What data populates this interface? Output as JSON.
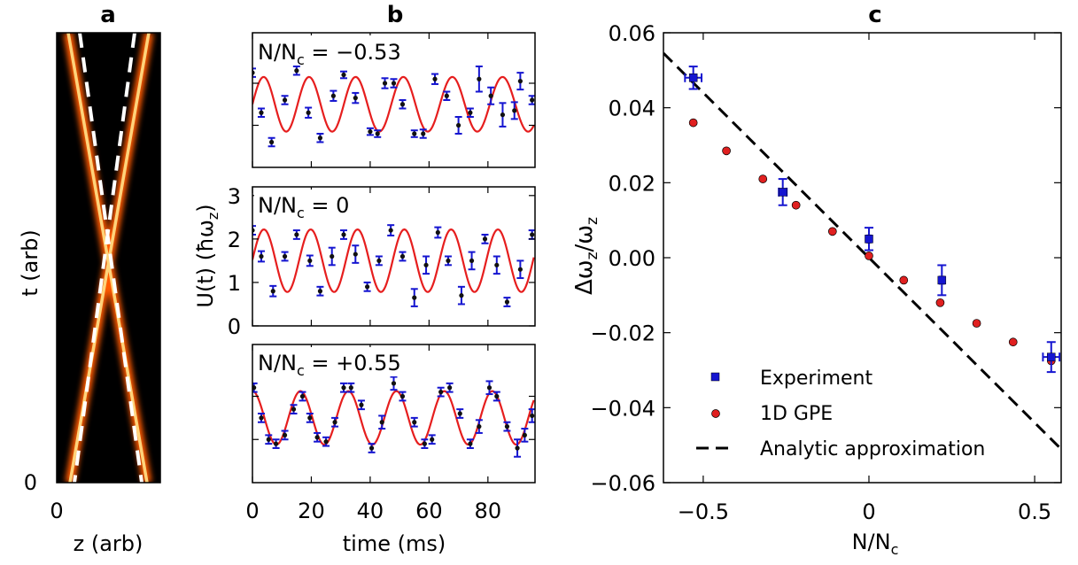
{
  "panels": {
    "a": {
      "letter": "a",
      "xlabel": "z (arb)",
      "ylabel": "t (arb)",
      "xtick": "0",
      "ytick": "0"
    },
    "b": {
      "letter": "b",
      "xlabel": "time (ms)",
      "ylabel": "U(t) (ħω",
      "ylabel_sub": "z",
      "ylabel_end": ")",
      "xticks": [
        0,
        20,
        40,
        60,
        80
      ],
      "yticks": [
        0,
        1,
        2,
        3
      ],
      "annotations": [
        {
          "pre": "N/N",
          "sub": "c",
          "post": " = −0.53"
        },
        {
          "pre": "N/N",
          "sub": "c",
          "post": " = 0"
        },
        {
          "pre": "N/N",
          "sub": "c",
          "post": " = +0.55"
        }
      ]
    },
    "c": {
      "letter": "c",
      "xlabel": "N/N",
      "xlabel_sub": "c",
      "ylabel": "Δω",
      "ylabel_sub1": "z",
      "ylabel_mid": "/ω",
      "ylabel_sub2": "z"
    }
  },
  "chart_data": [
    {
      "type": "heatmap",
      "panel": "a",
      "title": "a",
      "xlabel": "z (arb)",
      "ylabel": "t (arb)",
      "colormap": "black-red-yellow",
      "description_values": {
        "x_start": 0,
        "t_start": 0
      }
    },
    {
      "type": "line",
      "panel": "b",
      "title": "b",
      "xlabel": "time (ms)",
      "ylabel": "U(t) (ħωz)",
      "xlim": [
        0,
        96
      ],
      "ylim": [
        0,
        3.2
      ],
      "series": [
        {
          "annotation": "N/Nc = −0.53",
          "fit": {
            "mean": 1.5,
            "amp": 0.65,
            "period_ms": 15.2,
            "phase_ms": 3.8,
            "chirp": 0.008
          },
          "points": [
            {
              "x": 0,
              "y": 2.25,
              "err": 0.1
            },
            {
              "x": 3,
              "y": 1.3,
              "err": 0.1
            },
            {
              "x": 6.5,
              "y": 0.6,
              "err": 0.1
            },
            {
              "x": 11,
              "y": 1.6,
              "err": 0.1
            },
            {
              "x": 15,
              "y": 2.3,
              "err": 0.1
            },
            {
              "x": 19,
              "y": 1.3,
              "err": 0.12
            },
            {
              "x": 23,
              "y": 0.7,
              "err": 0.1
            },
            {
              "x": 27.5,
              "y": 1.7,
              "err": 0.12
            },
            {
              "x": 31,
              "y": 2.2,
              "err": 0.08
            },
            {
              "x": 35,
              "y": 1.65,
              "err": 0.12
            },
            {
              "x": 40,
              "y": 0.85,
              "err": 0.08
            },
            {
              "x": 42.5,
              "y": 0.8,
              "err": 0.08
            },
            {
              "x": 45,
              "y": 2.0,
              "err": 0.12
            },
            {
              "x": 48,
              "y": 2.0,
              "err": 0.1
            },
            {
              "x": 51,
              "y": 1.5,
              "err": 0.1
            },
            {
              "x": 55,
              "y": 0.8,
              "err": 0.08
            },
            {
              "x": 58,
              "y": 0.8,
              "err": 0.1
            },
            {
              "x": 62,
              "y": 2.1,
              "err": 0.12
            },
            {
              "x": 66,
              "y": 1.7,
              "err": 0.1
            },
            {
              "x": 70,
              "y": 1.0,
              "err": 0.2
            },
            {
              "x": 74,
              "y": 1.3,
              "err": 0.1
            },
            {
              "x": 77,
              "y": 2.1,
              "err": 0.3
            },
            {
              "x": 81,
              "y": 1.7,
              "err": 0.2
            },
            {
              "x": 85,
              "y": 1.25,
              "err": 0.28
            },
            {
              "x": 89,
              "y": 1.35,
              "err": 0.2
            },
            {
              "x": 91,
              "y": 2.05,
              "err": 0.2
            },
            {
              "x": 95,
              "y": 1.6,
              "err": 0.1
            }
          ]
        },
        {
          "annotation": "N/Nc = 0",
          "fit": {
            "mean": 1.5,
            "amp": 0.72,
            "period_ms": 15.9,
            "phase_ms": 3.9,
            "chirp": 0
          },
          "points": [
            {
              "x": 0,
              "y": 2.2,
              "err": 0.1
            },
            {
              "x": 3,
              "y": 1.6,
              "err": 0.12
            },
            {
              "x": 7,
              "y": 0.8,
              "err": 0.12
            },
            {
              "x": 11,
              "y": 1.6,
              "err": 0.1
            },
            {
              "x": 15,
              "y": 2.1,
              "err": 0.1
            },
            {
              "x": 19.5,
              "y": 1.5,
              "err": 0.12
            },
            {
              "x": 23,
              "y": 0.8,
              "err": 0.1
            },
            {
              "x": 27,
              "y": 1.6,
              "err": 0.2
            },
            {
              "x": 31,
              "y": 2.1,
              "err": 0.1
            },
            {
              "x": 35,
              "y": 1.65,
              "err": 0.2
            },
            {
              "x": 39,
              "y": 0.9,
              "err": 0.1
            },
            {
              "x": 43,
              "y": 1.5,
              "err": 0.1
            },
            {
              "x": 47,
              "y": 2.2,
              "err": 0.12
            },
            {
              "x": 51,
              "y": 1.6,
              "err": 0.1
            },
            {
              "x": 55,
              "y": 0.65,
              "err": 0.2
            },
            {
              "x": 59,
              "y": 1.4,
              "err": 0.2
            },
            {
              "x": 63,
              "y": 2.15,
              "err": 0.12
            },
            {
              "x": 66.5,
              "y": 1.5,
              "err": 0.1
            },
            {
              "x": 71,
              "y": 0.7,
              "err": 0.2
            },
            {
              "x": 74.5,
              "y": 1.5,
              "err": 0.2
            },
            {
              "x": 79,
              "y": 2.0,
              "err": 0.1
            },
            {
              "x": 83,
              "y": 1.4,
              "err": 0.2
            },
            {
              "x": 86.5,
              "y": 0.55,
              "err": 0.1
            },
            {
              "x": 91,
              "y": 1.3,
              "err": 0.2
            },
            {
              "x": 95,
              "y": 2.1,
              "err": 0.1
            }
          ]
        },
        {
          "annotation": "N/Nc = +0.55",
          "fit": {
            "mean": 1.5,
            "amp": 0.62,
            "period_ms": 16.3,
            "phase_ms": 0.0,
            "chirp": 0.0
          },
          "points": [
            {
              "x": 0.5,
              "y": 2.2,
              "err": 0.1
            },
            {
              "x": 3,
              "y": 1.5,
              "err": 0.1
            },
            {
              "x": 5.5,
              "y": 1.0,
              "err": 0.1
            },
            {
              "x": 8,
              "y": 0.9,
              "err": 0.1
            },
            {
              "x": 11,
              "y": 1.1,
              "err": 0.1
            },
            {
              "x": 14,
              "y": 1.7,
              "err": 0.1
            },
            {
              "x": 17,
              "y": 2.0,
              "err": 0.1
            },
            {
              "x": 19.5,
              "y": 1.5,
              "err": 0.1
            },
            {
              "x": 22,
              "y": 1.05,
              "err": 0.1
            },
            {
              "x": 25,
              "y": 0.95,
              "err": 0.1
            },
            {
              "x": 28,
              "y": 1.4,
              "err": 0.1
            },
            {
              "x": 31,
              "y": 2.2,
              "err": 0.1
            },
            {
              "x": 33.5,
              "y": 2.2,
              "err": 0.1
            },
            {
              "x": 37,
              "y": 1.8,
              "err": 0.1
            },
            {
              "x": 40.5,
              "y": 0.8,
              "err": 0.1
            },
            {
              "x": 44,
              "y": 1.4,
              "err": 0.15
            },
            {
              "x": 48,
              "y": 2.3,
              "err": 0.15
            },
            {
              "x": 51,
              "y": 2.0,
              "err": 0.1
            },
            {
              "x": 55,
              "y": 1.4,
              "err": 0.1
            },
            {
              "x": 58.5,
              "y": 0.9,
              "err": 0.1
            },
            {
              "x": 61,
              "y": 1.0,
              "err": 0.1
            },
            {
              "x": 64,
              "y": 2.1,
              "err": 0.1
            },
            {
              "x": 67,
              "y": 2.2,
              "err": 0.1
            },
            {
              "x": 70.5,
              "y": 1.6,
              "err": 0.1
            },
            {
              "x": 74,
              "y": 0.9,
              "err": 0.1
            },
            {
              "x": 77,
              "y": 1.3,
              "err": 0.15
            },
            {
              "x": 80.5,
              "y": 2.2,
              "err": 0.15
            },
            {
              "x": 83,
              "y": 2.0,
              "err": 0.1
            },
            {
              "x": 86.5,
              "y": 1.3,
              "err": 0.1
            },
            {
              "x": 90,
              "y": 0.8,
              "err": 0.2
            },
            {
              "x": 92.5,
              "y": 1.1,
              "err": 0.15
            },
            {
              "x": 95,
              "y": 1.55,
              "err": 0.15
            }
          ]
        }
      ]
    },
    {
      "type": "scatter",
      "panel": "c",
      "title": "c",
      "xlabel": "N/Nc",
      "ylabel": "Δωz/ωz",
      "xlim": [
        -0.62,
        0.58
      ],
      "ylim": [
        -0.06,
        0.06
      ],
      "xticks": [
        -0.5,
        0.0,
        0.5
      ],
      "xtick_labels": [
        "−0.5",
        "0",
        "0.5"
      ],
      "yticks": [
        0.06,
        0.04,
        0.02,
        0.0,
        -0.02,
        -0.04,
        -0.06
      ],
      "ytick_labels": [
        "0.06",
        "0.04",
        "0.02",
        "0.00",
        "−0.02",
        "−0.04",
        "−0.06"
      ],
      "legend_position": "bottom-left",
      "series": [
        {
          "name": "Experiment",
          "color": "#1515d0",
          "points": [
            {
              "x": -0.53,
              "y": 0.048,
              "yerr": 0.003,
              "xerr": 0.025
            },
            {
              "x": -0.26,
              "y": 0.0175,
              "yerr": 0.0035,
              "xerr": 0.012
            },
            {
              "x": 0.0,
              "y": 0.005,
              "yerr": 0.003,
              "xerr": 0.005
            },
            {
              "x": 0.22,
              "y": -0.006,
              "yerr": 0.004,
              "xerr": 0.006
            },
            {
              "x": 0.55,
              "y": -0.0265,
              "yerr": 0.004,
              "xerr": 0.025
            }
          ]
        },
        {
          "name": "1D GPE",
          "color": "#e02020",
          "points": [
            {
              "x": -0.53,
              "y": 0.036
            },
            {
              "x": -0.43,
              "y": 0.0285
            },
            {
              "x": -0.32,
              "y": 0.021
            },
            {
              "x": -0.22,
              "y": 0.014
            },
            {
              "x": -0.11,
              "y": 0.007
            },
            {
              "x": 0.0,
              "y": 0.0005
            },
            {
              "x": 0.105,
              "y": -0.006
            },
            {
              "x": 0.215,
              "y": -0.012
            },
            {
              "x": 0.325,
              "y": -0.0175
            },
            {
              "x": 0.435,
              "y": -0.0225
            },
            {
              "x": 0.55,
              "y": -0.0275
            }
          ]
        },
        {
          "name": "Analytic approximation",
          "color": "#000000",
          "line": {
            "slope": -0.088,
            "intercept": 0.0
          }
        }
      ]
    }
  ]
}
